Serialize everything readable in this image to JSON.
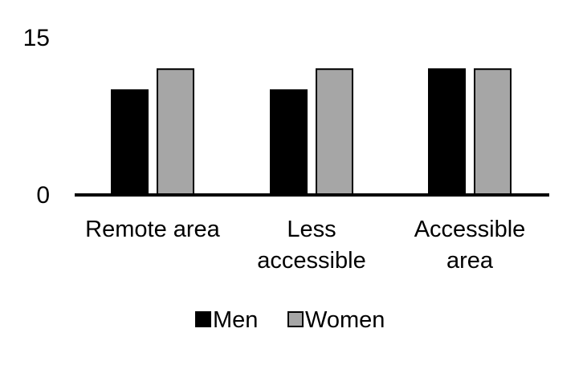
{
  "chart_data": {
    "type": "bar",
    "categories": [
      [
        "Remote area"
      ],
      [
        "Less",
        "accessible"
      ],
      [
        "Accessible",
        "area"
      ]
    ],
    "series": [
      {
        "name": "Men",
        "values": [
          10,
          10,
          12
        ],
        "color": "#000000"
      },
      {
        "name": "Women",
        "values": [
          12,
          12,
          12
        ],
        "color": "#a6a6a6"
      }
    ],
    "ylim": [
      0,
      15
    ],
    "yticks": [
      "0",
      "15"
    ],
    "grid": false,
    "legend": "bottom",
    "title": "",
    "xlabel": "",
    "ylabel": ""
  }
}
